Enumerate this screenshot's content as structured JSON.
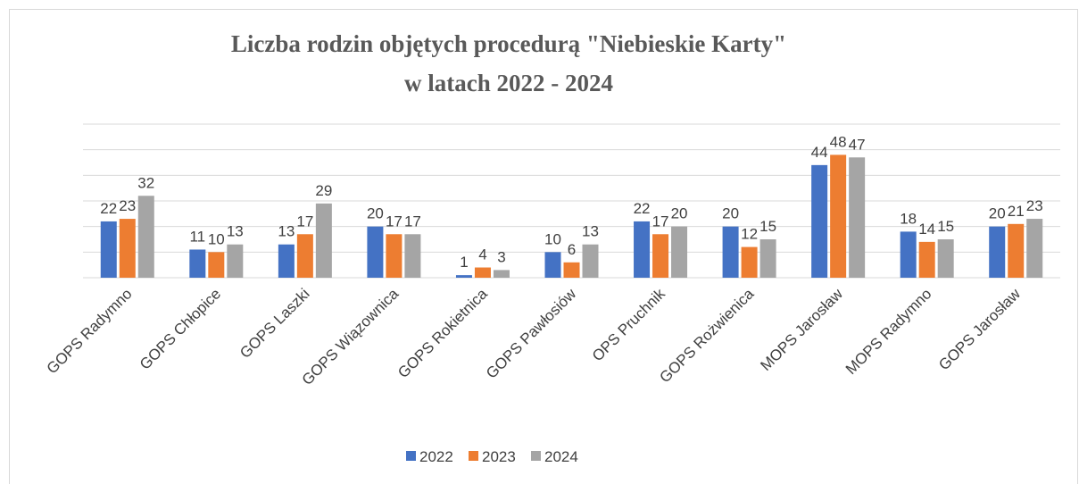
{
  "chart_data": {
    "type": "bar",
    "title": [
      "Liczba rodzin objętych procedurą  \"Niebieskie Karty\"",
      "w latach 2022 - 2024"
    ],
    "categories": [
      "GOPS Radymno",
      "GOPS Chłopice",
      "GOPS Laszki",
      "GOPS Wiązownica",
      "GOPS Rokietnica",
      "GOPS Pawłosiów",
      "OPS Pruchnik",
      "GOPS Rożwienica",
      "MOPS Jarosław",
      "MOPS Radymno",
      "GOPS Jarosław"
    ],
    "series": [
      {
        "name": "2022",
        "color": "#4472c4",
        "values": [
          22,
          11,
          13,
          20,
          1,
          10,
          22,
          20,
          44,
          18,
          20
        ]
      },
      {
        "name": "2023",
        "color": "#ed7d31",
        "values": [
          23,
          10,
          17,
          17,
          4,
          6,
          17,
          12,
          48,
          14,
          21
        ]
      },
      {
        "name": "2024",
        "color": "#a5a5a5",
        "values": [
          32,
          13,
          29,
          17,
          3,
          13,
          20,
          15,
          47,
          15,
          23
        ]
      }
    ],
    "ylim": [
      0,
      60
    ],
    "yticks": [
      0,
      10,
      20,
      30,
      40,
      50,
      60
    ],
    "grid": true,
    "legend": "bottom"
  }
}
